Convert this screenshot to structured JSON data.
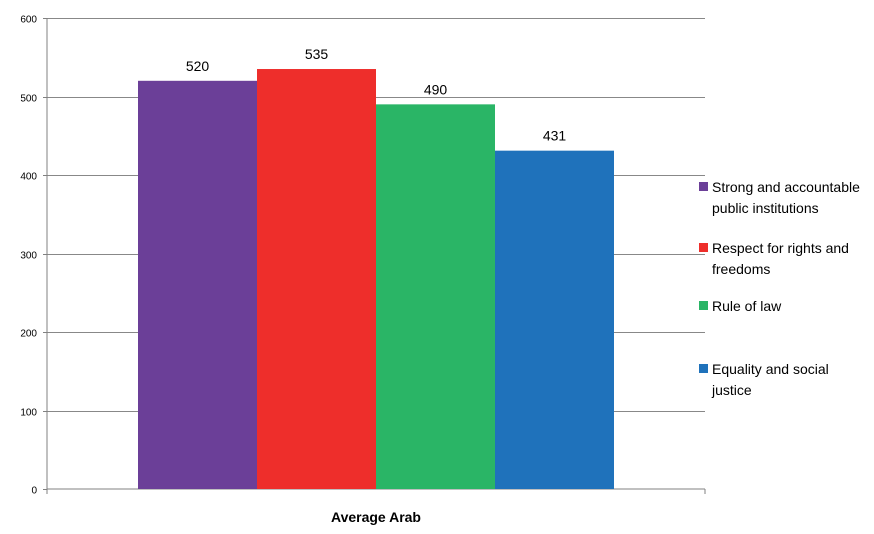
{
  "chart_data": {
    "type": "bar",
    "categories": [
      "Average Arab"
    ],
    "series": [
      {
        "name": "Strong and accountable public institutions",
        "values": [
          520
        ],
        "color": "#6b3f98",
        "legend_lines": [
          "Strong and accountable",
          "public institutions"
        ]
      },
      {
        "name": "Respect for rights and freedoms",
        "values": [
          535
        ],
        "color": "#ee2e2b",
        "legend_lines": [
          "Respect for rights and",
          "freedoms"
        ]
      },
      {
        "name": "Rule of law",
        "values": [
          490
        ],
        "color": "#2ab566",
        "legend_lines": [
          "Rule of law"
        ]
      },
      {
        "name": "Equality and social justice",
        "values": [
          431
        ],
        "color": "#1f72bb",
        "legend_lines": [
          "Equality and social",
          "justice"
        ]
      }
    ],
    "data_labels": [
      "520",
      "535",
      "490",
      "431"
    ],
    "y_ticks": [
      0,
      100,
      200,
      300,
      400,
      500,
      600
    ],
    "y_tick_labels": [
      "0",
      "100",
      "200",
      "300",
      "400",
      "500",
      "600"
    ],
    "ylim": [
      0,
      600
    ],
    "grid": true,
    "legend_position": "right"
  }
}
